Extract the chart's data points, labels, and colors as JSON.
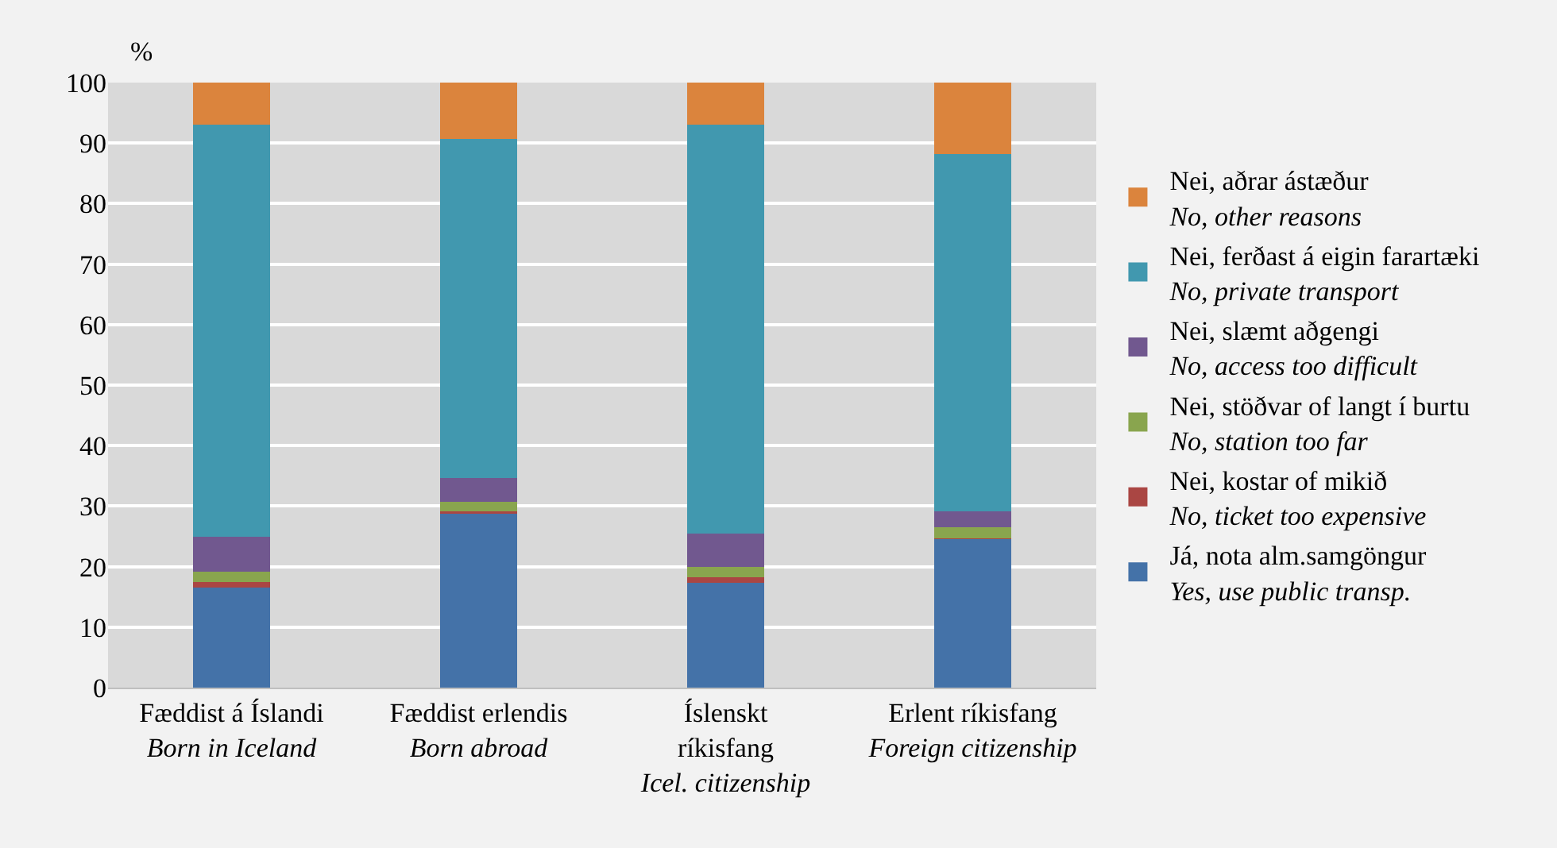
{
  "chart_data": {
    "type": "bar",
    "stacked": true,
    "ylabel": "%",
    "categories": [
      "Fæddist á Íslandi\nBorn in Iceland",
      "Fæddist erlendis\nBorn abroad",
      "Íslenskt\nríkisfang\nIcel. citizenship",
      "Erlent ríkisfang\nForeign citizenship"
    ],
    "series": [
      {
        "name": "Já, nota alm.samgöngur\nYes, use public transp.",
        "color": "#4472a8",
        "values": [
          16.6,
          28.7,
          17.3,
          24.5
        ]
      },
      {
        "name": "Nei, kostar of mikið\nNo, ticket too expensive",
        "color": "#aa4643",
        "values": [
          0.8,
          0.5,
          0.9,
          0.2
        ]
      },
      {
        "name": "Nei, stöðvar of langt í burtu\nNo, station too far",
        "color": "#89a54e",
        "values": [
          1.8,
          1.5,
          1.8,
          1.8
        ]
      },
      {
        "name": "Nei, slæmt aðgengi\nNo, access too difficult",
        "color": "#71588f",
        "values": [
          5.7,
          3.9,
          5.5,
          2.7
        ]
      },
      {
        "name": "Nei, ferðast á eigin farartæki\nNo, private transport",
        "color": "#4198af",
        "values": [
          68.1,
          56.1,
          67.5,
          59.0
        ]
      },
      {
        "name": "Nei, aðrar ástæður\nNo, other reasons",
        "color": "#db843d",
        "values": [
          7.0,
          9.3,
          7.0,
          11.8
        ]
      }
    ],
    "ylim": [
      0,
      100
    ],
    "yticks": [
      0,
      10,
      20,
      30,
      40,
      50,
      60,
      70,
      80,
      90,
      100
    ],
    "grid": "y",
    "legend": "right"
  }
}
